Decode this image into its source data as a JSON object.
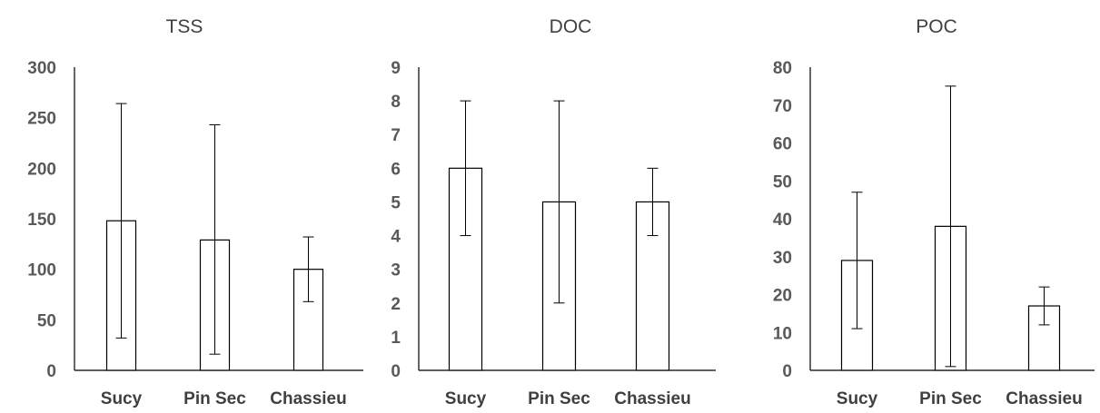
{
  "chart_data": [
    {
      "type": "bar",
      "title": "TSS",
      "categories": [
        "Sucy",
        "Pin Sec",
        "Chassieu"
      ],
      "values": [
        148,
        129,
        100
      ],
      "error_low": [
        32,
        16,
        68
      ],
      "error_high": [
        264,
        243,
        132
      ],
      "ylim": [
        0,
        300
      ],
      "yticks": [
        0,
        50,
        100,
        150,
        200,
        250,
        300
      ],
      "grid": false,
      "legend": "none"
    },
    {
      "type": "bar",
      "title": "DOC",
      "categories": [
        "Sucy",
        "Pin Sec",
        "Chassieu"
      ],
      "values": [
        6,
        5,
        5
      ],
      "error_low": [
        4,
        2,
        4
      ],
      "error_high": [
        8,
        8,
        6
      ],
      "ylim": [
        0,
        9
      ],
      "yticks": [
        0,
        1,
        2,
        3,
        4,
        5,
        6,
        7,
        8,
        9
      ],
      "grid": false,
      "legend": "none"
    },
    {
      "type": "bar",
      "title": "POC",
      "categories": [
        "Sucy",
        "Pin Sec",
        "Chassieu"
      ],
      "values": [
        29,
        38,
        17
      ],
      "error_low": [
        11,
        1,
        12
      ],
      "error_high": [
        47,
        75,
        22
      ],
      "ylim": [
        0,
        80
      ],
      "yticks": [
        0,
        10,
        20,
        30,
        40,
        50,
        60,
        70,
        80
      ],
      "grid": false,
      "legend": "none"
    }
  ]
}
